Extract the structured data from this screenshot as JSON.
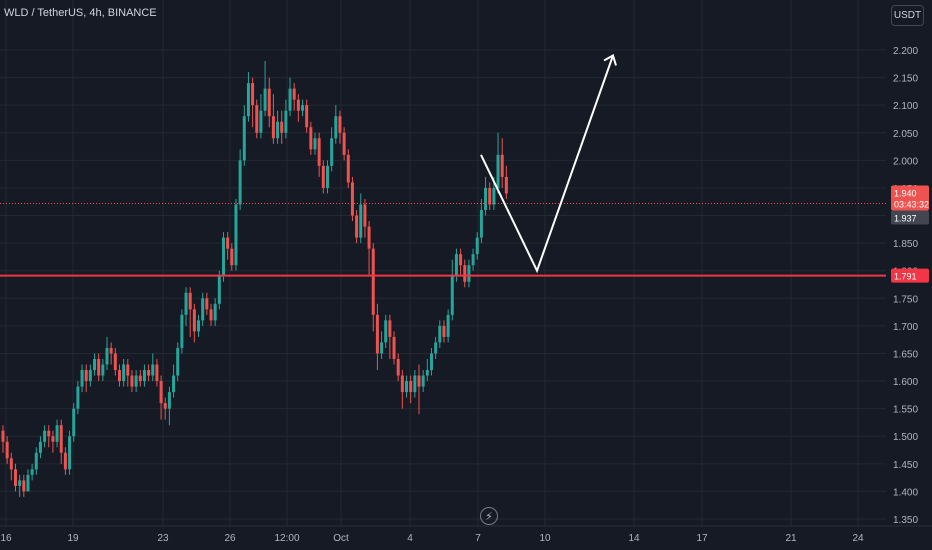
{
  "header": {
    "symbol_line": "WLD / TetherUS, 4h, BINANCE",
    "currency_button": "USDT"
  },
  "colors": {
    "background": "#161A25",
    "up": "#26A69A",
    "down": "#EF5350",
    "grid": "#242832",
    "axis_text": "#B2B5BE",
    "support_line": "#F23645",
    "drawing": "#FFFFFF"
  },
  "chart_data": {
    "type": "candlestick",
    "ylim": [
      1.35,
      2.2
    ],
    "y_ticks": [
      "1.350",
      "1.400",
      "1.450",
      "1.500",
      "1.550",
      "1.600",
      "1.650",
      "1.700",
      "1.750",
      "1.800",
      "1.850",
      "1.900",
      "1.950",
      "2.000",
      "2.050",
      "2.100",
      "2.150",
      "2.200"
    ],
    "x_ticks": [
      "16",
      "19",
      "23",
      "26",
      "12:00",
      "Oct",
      "4",
      "7",
      "10",
      "14",
      "17",
      "21",
      "24"
    ],
    "grid": true,
    "price_labels": {
      "current_price": "1.940",
      "countdown": "03:43:32",
      "crosshair_price": "1.937",
      "support_price": "1.791"
    },
    "support_level": 1.791,
    "current_level": 1.94,
    "crosshair_level": 1.937,
    "projection_path": [
      {
        "t": "Oct 7",
        "price": 2.01
      },
      {
        "t": "Oct 9",
        "price": 1.8
      },
      {
        "t": "Oct 12",
        "price": 2.19
      }
    ],
    "candles": [
      [
        1.51,
        1.49,
        1.52,
        1.47
      ],
      [
        1.49,
        1.46,
        1.5,
        1.45
      ],
      [
        1.46,
        1.44,
        1.47,
        1.42
      ],
      [
        1.44,
        1.41,
        1.45,
        1.4
      ],
      [
        1.41,
        1.42,
        1.43,
        1.39
      ],
      [
        1.42,
        1.4,
        1.43,
        1.39
      ],
      [
        1.4,
        1.43,
        1.44,
        1.4
      ],
      [
        1.43,
        1.44,
        1.45,
        1.42
      ],
      [
        1.44,
        1.47,
        1.48,
        1.43
      ],
      [
        1.47,
        1.49,
        1.5,
        1.46
      ],
      [
        1.49,
        1.51,
        1.52,
        1.48
      ],
      [
        1.51,
        1.5,
        1.52,
        1.48
      ],
      [
        1.5,
        1.49,
        1.51,
        1.47
      ],
      [
        1.49,
        1.52,
        1.53,
        1.48
      ],
      [
        1.52,
        1.47,
        1.53,
        1.45
      ],
      [
        1.47,
        1.44,
        1.48,
        1.43
      ],
      [
        1.44,
        1.5,
        1.51,
        1.43
      ],
      [
        1.5,
        1.55,
        1.56,
        1.49
      ],
      [
        1.55,
        1.59,
        1.6,
        1.54
      ],
      [
        1.59,
        1.62,
        1.63,
        1.58
      ],
      [
        1.62,
        1.6,
        1.63,
        1.58
      ],
      [
        1.6,
        1.62,
        1.63,
        1.59
      ],
      [
        1.62,
        1.64,
        1.65,
        1.61
      ],
      [
        1.64,
        1.61,
        1.65,
        1.6
      ],
      [
        1.61,
        1.63,
        1.64,
        1.6
      ],
      [
        1.63,
        1.66,
        1.68,
        1.62
      ],
      [
        1.66,
        1.65,
        1.67,
        1.63
      ],
      [
        1.65,
        1.62,
        1.66,
        1.61
      ],
      [
        1.62,
        1.6,
        1.63,
        1.59
      ],
      [
        1.6,
        1.63,
        1.64,
        1.59
      ],
      [
        1.63,
        1.61,
        1.64,
        1.59
      ],
      [
        1.61,
        1.59,
        1.62,
        1.58
      ],
      [
        1.59,
        1.61,
        1.62,
        1.58
      ],
      [
        1.61,
        1.6,
        1.62,
        1.59
      ],
      [
        1.6,
        1.62,
        1.63,
        1.59
      ],
      [
        1.62,
        1.61,
        1.63,
        1.6
      ],
      [
        1.61,
        1.63,
        1.65,
        1.6
      ],
      [
        1.63,
        1.6,
        1.64,
        1.59
      ],
      [
        1.6,
        1.56,
        1.61,
        1.53
      ],
      [
        1.56,
        1.55,
        1.57,
        1.53
      ],
      [
        1.55,
        1.58,
        1.59,
        1.52
      ],
      [
        1.58,
        1.61,
        1.63,
        1.57
      ],
      [
        1.61,
        1.66,
        1.67,
        1.6
      ],
      [
        1.66,
        1.72,
        1.73,
        1.65
      ],
      [
        1.72,
        1.76,
        1.77,
        1.7
      ],
      [
        1.76,
        1.73,
        1.77,
        1.68
      ],
      [
        1.73,
        1.69,
        1.74,
        1.67
      ],
      [
        1.69,
        1.71,
        1.72,
        1.68
      ],
      [
        1.71,
        1.75,
        1.76,
        1.7
      ],
      [
        1.75,
        1.73,
        1.76,
        1.72
      ],
      [
        1.73,
        1.71,
        1.74,
        1.7
      ],
      [
        1.71,
        1.74,
        1.75,
        1.7
      ],
      [
        1.74,
        1.79,
        1.8,
        1.73
      ],
      [
        1.79,
        1.86,
        1.87,
        1.78
      ],
      [
        1.86,
        1.84,
        1.87,
        1.82
      ],
      [
        1.84,
        1.81,
        1.85,
        1.8
      ],
      [
        1.81,
        1.92,
        1.93,
        1.8
      ],
      [
        1.92,
        2.0,
        2.02,
        1.91
      ],
      [
        2.0,
        2.08,
        2.1,
        1.99
      ],
      [
        2.08,
        2.14,
        2.16,
        2.07
      ],
      [
        2.14,
        2.1,
        2.15,
        2.06
      ],
      [
        2.1,
        2.05,
        2.11,
        2.04
      ],
      [
        2.05,
        2.09,
        2.12,
        2.04
      ],
      [
        2.09,
        2.13,
        2.18,
        2.08
      ],
      [
        2.13,
        2.08,
        2.15,
        2.06
      ],
      [
        2.08,
        2.04,
        2.12,
        2.03
      ],
      [
        2.04,
        2.07,
        2.09,
        2.03
      ],
      [
        2.07,
        2.05,
        2.09,
        2.03
      ],
      [
        2.05,
        2.09,
        2.11,
        2.04
      ],
      [
        2.09,
        2.13,
        2.15,
        2.08
      ],
      [
        2.13,
        2.11,
        2.14,
        2.09
      ],
      [
        2.11,
        2.09,
        2.12,
        2.07
      ],
      [
        2.09,
        2.1,
        2.11,
        2.08
      ],
      [
        2.1,
        2.06,
        2.11,
        2.05
      ],
      [
        2.06,
        2.02,
        2.07,
        2.01
      ],
      [
        2.02,
        2.04,
        2.05,
        2.01
      ],
      [
        2.04,
        1.99,
        2.05,
        1.97
      ],
      [
        1.99,
        1.95,
        2.0,
        1.94
      ],
      [
        1.95,
        1.99,
        2.0,
        1.94
      ],
      [
        1.99,
        2.04,
        2.06,
        1.98
      ],
      [
        2.04,
        2.08,
        2.1,
        2.03
      ],
      [
        2.08,
        2.05,
        2.09,
        2.03
      ],
      [
        2.05,
        2.01,
        2.06,
        2.0
      ],
      [
        2.01,
        1.96,
        2.02,
        1.95
      ],
      [
        1.96,
        1.9,
        1.97,
        1.89
      ],
      [
        1.9,
        1.86,
        1.91,
        1.85
      ],
      [
        1.86,
        1.92,
        1.94,
        1.85
      ],
      [
        1.92,
        1.88,
        1.93,
        1.86
      ],
      [
        1.88,
        1.84,
        1.89,
        1.79
      ],
      [
        1.84,
        1.72,
        1.85,
        1.69
      ],
      [
        1.72,
        1.65,
        1.74,
        1.62
      ],
      [
        1.65,
        1.67,
        1.69,
        1.64
      ],
      [
        1.67,
        1.71,
        1.72,
        1.66
      ],
      [
        1.71,
        1.68,
        1.72,
        1.64
      ],
      [
        1.68,
        1.64,
        1.69,
        1.63
      ],
      [
        1.64,
        1.61,
        1.65,
        1.6
      ],
      [
        1.61,
        1.58,
        1.62,
        1.55
      ],
      [
        1.58,
        1.6,
        1.61,
        1.57
      ],
      [
        1.6,
        1.58,
        1.61,
        1.56
      ],
      [
        1.58,
        1.61,
        1.62,
        1.57
      ],
      [
        1.61,
        1.59,
        1.63,
        1.54
      ],
      [
        1.59,
        1.61,
        1.62,
        1.58
      ],
      [
        1.61,
        1.62,
        1.64,
        1.6
      ],
      [
        1.62,
        1.65,
        1.66,
        1.61
      ],
      [
        1.65,
        1.67,
        1.68,
        1.64
      ],
      [
        1.67,
        1.7,
        1.71,
        1.66
      ],
      [
        1.7,
        1.68,
        1.71,
        1.67
      ],
      [
        1.68,
        1.72,
        1.73,
        1.67
      ],
      [
        1.72,
        1.79,
        1.82,
        1.71
      ],
      [
        1.79,
        1.83,
        1.84,
        1.78
      ],
      [
        1.83,
        1.81,
        1.84,
        1.79
      ],
      [
        1.81,
        1.78,
        1.82,
        1.77
      ],
      [
        1.78,
        1.81,
        1.82,
        1.77
      ],
      [
        1.81,
        1.83,
        1.84,
        1.8
      ],
      [
        1.83,
        1.86,
        1.87,
        1.82
      ],
      [
        1.86,
        1.91,
        1.93,
        1.85
      ],
      [
        1.91,
        1.95,
        1.97,
        1.9
      ],
      [
        1.95,
        1.92,
        1.96,
        1.91
      ],
      [
        1.92,
        1.95,
        1.97,
        1.91
      ],
      [
        1.95,
        2.01,
        2.05,
        1.94
      ],
      [
        2.01,
        1.97,
        2.04,
        1.95
      ],
      [
        1.97,
        1.94,
        1.99,
        1.93
      ]
    ]
  }
}
